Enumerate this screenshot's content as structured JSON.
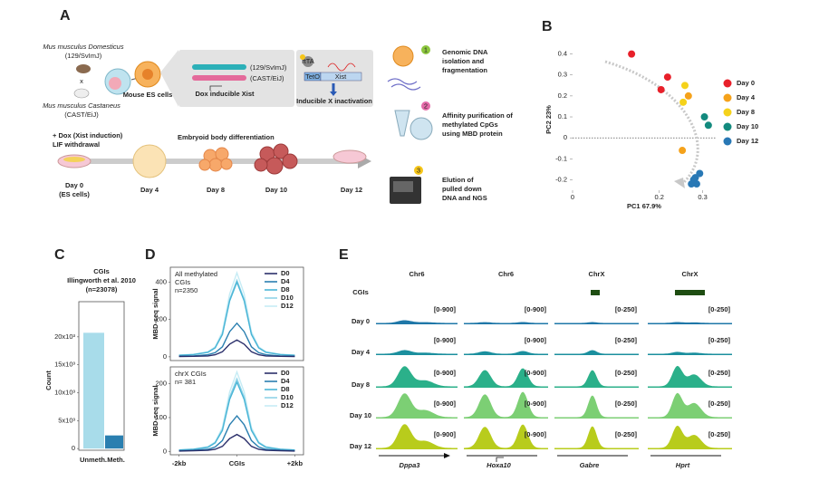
{
  "panels": [
    "A",
    "B",
    "C",
    "D",
    "E"
  ],
  "diagram": {
    "mouse1": [
      "Mus musculus Domesticus",
      "(129/SvImJ)"
    ],
    "cross": "x",
    "mouse2": [
      "Mus musculus Castaneus",
      "(CAST/EiJ)"
    ],
    "es": "Mouse ES cells",
    "alleles": [
      "(129/SvImJ)",
      "(CAST/EiJ)"
    ],
    "dox_xist": "Dox inducible Xist",
    "construct": [
      "rtTA",
      "TetO",
      "Xist"
    ],
    "inducible": "Inducible X inactivation",
    "treatment": [
      "+ Dox (Xist induction)",
      "LIF withdrawal"
    ],
    "eb": "Embryoid body differentiation",
    "timeline": [
      [
        "Day 0",
        "(ES cells)"
      ],
      [
        "Day 4"
      ],
      [
        "Day 8"
      ],
      [
        "Day 10"
      ],
      [
        "Day 12"
      ]
    ],
    "steps": [
      {
        "number": "1",
        "text": [
          "Genomic DNA",
          "isolation and",
          "fragmentation"
        ]
      },
      {
        "number": "2",
        "text": [
          "Affinity purification of",
          "methylated CpGs",
          "using MBD protein"
        ]
      },
      {
        "number": "3",
        "text": [
          "Elution of",
          "pulled down",
          "DNA and NGS"
        ]
      }
    ]
  },
  "chart_data": [
    {
      "type": "scatter",
      "xlabel": "PC1 67.9%",
      "ylabel": "PC2 23%",
      "xlim": [
        0,
        0.33
      ],
      "xticks": [
        0,
        0.2,
        0.3
      ],
      "ylim": [
        -0.25,
        0.42
      ],
      "yticks": [
        -0.2,
        -0.1,
        0,
        0.1,
        0.2,
        0.3,
        0.4
      ],
      "legend": "right",
      "series": [
        {
          "name": "Day 0",
          "color": "#e8202a",
          "x": [
            0.136,
            0.219,
            0.204
          ],
          "y": [
            0.4,
            0.29,
            0.23
          ]
        },
        {
          "name": "Day 4",
          "color": "#f5a21b",
          "x": [
            0.267,
            0.253
          ],
          "y": [
            0.2,
            -0.06
          ]
        },
        {
          "name": "Day 8",
          "color": "#f5d21b",
          "x": [
            0.259,
            0.255
          ],
          "y": [
            0.25,
            0.17
          ]
        },
        {
          "name": "Day 10",
          "color": "#138a7e",
          "x": [
            0.304,
            0.313
          ],
          "y": [
            0.1,
            0.06
          ]
        },
        {
          "name": "Day 12",
          "color": "#2878b5",
          "x": [
            0.293,
            0.283,
            0.274,
            0.286,
            0.279
          ],
          "y": [
            -0.17,
            -0.19,
            -0.22,
            -0.22,
            -0.2
          ]
        }
      ]
    },
    {
      "type": "bar",
      "title": [
        "CGIs",
        "Illingworth et al. 2010",
        "(n=23078)"
      ],
      "ylabel": "Count",
      "categories": [
        "Unmeth.",
        "Meth."
      ],
      "values": [
        20728,
        2350
      ],
      "colors": [
        "#a8dcea",
        "#2a7fb0"
      ],
      "ylim": [
        -300,
        26300
      ],
      "yticks": [
        0,
        {
          "value": 5000,
          "label": "5x10³"
        },
        {
          "value": 10000,
          "label": "10x10³"
        },
        {
          "value": 15000,
          "label": "15x10³"
        },
        {
          "value": 20000,
          "label": "20x10³"
        }
      ]
    },
    {
      "type": "line",
      "ylabel": "MBD-seq signal",
      "annotation": [
        "All methylated",
        "CGIs",
        "n=2350"
      ],
      "x": [
        -2000,
        -1500,
        -1000,
        -750,
        -500,
        -250,
        0,
        250,
        500,
        750,
        1000,
        1500,
        2000
      ],
      "xlim": [
        -2300,
        2300
      ],
      "ylim": [
        -20,
        480
      ],
      "yticks": [
        0,
        200,
        400
      ],
      "series": [
        {
          "name": "D0",
          "color": "#2b2f6b",
          "values": [
            2,
            3,
            5,
            11,
            27,
            68,
            90,
            68,
            27,
            11,
            5,
            3,
            2
          ]
        },
        {
          "name": "D4",
          "color": "#2a7fb0",
          "values": [
            4,
            5,
            11,
            22,
            54,
            135,
            180,
            135,
            54,
            22,
            11,
            5,
            4
          ]
        },
        {
          "name": "D8",
          "color": "#49b5d6",
          "values": [
            8,
            12,
            24,
            48,
            120,
            300,
            400,
            300,
            120,
            48,
            24,
            12,
            8
          ]
        },
        {
          "name": "D10",
          "color": "#8fd3e8",
          "values": [
            8,
            12,
            25,
            49,
            123,
            308,
            410,
            308,
            123,
            49,
            25,
            12,
            8
          ]
        },
        {
          "name": "D12",
          "color": "#c6ecf5",
          "values": [
            9,
            14,
            27,
            54,
            135,
            338,
            450,
            338,
            135,
            54,
            27,
            14,
            9
          ]
        }
      ]
    },
    {
      "type": "line",
      "ylabel": "MBD-seq signal",
      "annotation": [
        "chrX CGIs",
        "n= 381"
      ],
      "x": [
        -2000,
        -1500,
        -1000,
        -750,
        -500,
        -250,
        0,
        250,
        500,
        750,
        1000,
        1500,
        2000
      ],
      "xlim": [
        -2300,
        2300
      ],
      "xticks": [
        {
          "value": -2000,
          "label": "-2kb"
        },
        {
          "value": 0,
          "label": "CGIs"
        },
        {
          "value": 2000,
          "label": "+2kb"
        }
      ],
      "ylim": [
        -10,
        250
      ],
      "yticks": [
        0,
        100,
        200
      ],
      "series": [
        {
          "name": "D0",
          "color": "#2b2f6b",
          "values": [
            1,
            2,
            3,
            6,
            15,
            38,
            50,
            38,
            15,
            6,
            3,
            2,
            1
          ]
        },
        {
          "name": "D4",
          "color": "#2a7fb0",
          "values": [
            2,
            3,
            6,
            13,
            32,
            79,
            105,
            79,
            32,
            13,
            6,
            3,
            2
          ]
        },
        {
          "name": "D8",
          "color": "#49b5d6",
          "values": [
            4,
            6,
            12,
            25,
            62,
            154,
            205,
            154,
            62,
            25,
            12,
            6,
            4
          ]
        },
        {
          "name": "D10",
          "color": "#8fd3e8",
          "values": [
            4,
            6,
            13,
            26,
            65,
            161,
            215,
            161,
            65,
            26,
            13,
            6,
            4
          ]
        },
        {
          "name": "D12",
          "color": "#c6ecf5",
          "values": [
            5,
            7,
            14,
            28,
            71,
            176,
            235,
            176,
            71,
            28,
            14,
            7,
            5
          ]
        }
      ]
    }
  ],
  "tracks": {
    "cgi_label": "CGIs",
    "columns": [
      {
        "chrom": "Chr6",
        "gene": "Dppa3",
        "range": "[0-900]"
      },
      {
        "chrom": "Chr6",
        "gene": "Hoxa10",
        "range": "[0-900]"
      },
      {
        "chrom": "ChrX",
        "gene": "Gabre",
        "range": "[0-250]"
      },
      {
        "chrom": "ChrX",
        "gene": "Hprt",
        "range": "[0-250]"
      }
    ],
    "days": [
      "Day 0",
      "Day 4",
      "Day 8",
      "Day 10",
      "Day 12"
    ],
    "day_colors": [
      "#1f77a8",
      "#1b8f9e",
      "#2bb08a",
      "#7ccf74",
      "#b8cc1c"
    ]
  }
}
